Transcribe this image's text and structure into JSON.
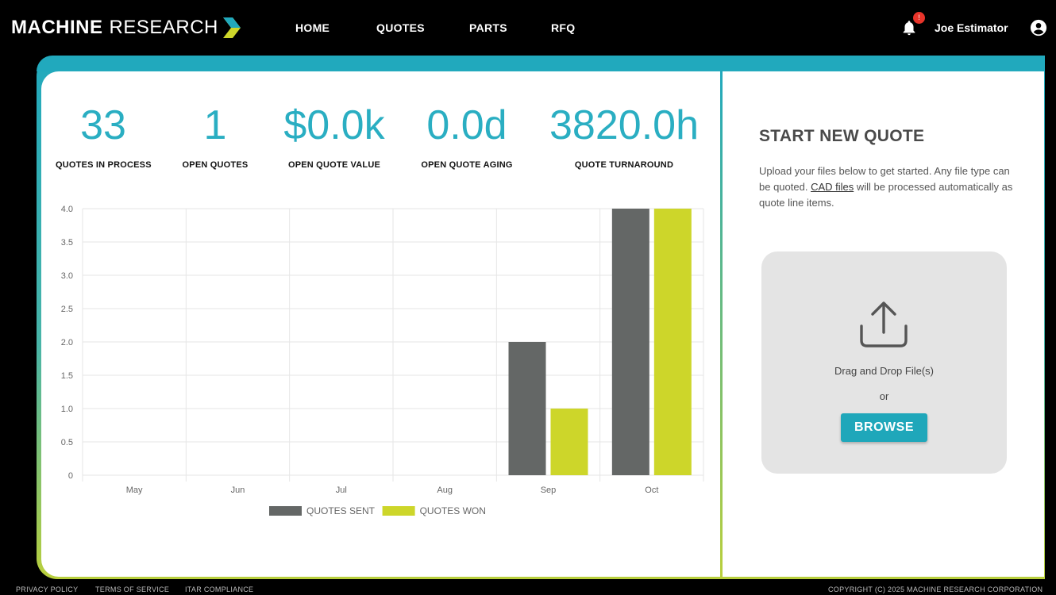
{
  "brand": {
    "bold": "MACHINE",
    "light": "RESEARCH"
  },
  "nav": {
    "home": "HOME",
    "quotes": "QUOTES",
    "parts": "PARTS",
    "rfq": "RFQ"
  },
  "notifications": {
    "count": "!"
  },
  "user": {
    "name": "Joe Estimator"
  },
  "kpis": [
    {
      "value": "33",
      "label": "QUOTES IN PROCESS"
    },
    {
      "value": "1",
      "label": "OPEN QUOTES"
    },
    {
      "value": "$0.0k",
      "label": "OPEN QUOTE VALUE"
    },
    {
      "value": "0.0d",
      "label": "OPEN QUOTE AGING"
    },
    {
      "value": "3820.0h",
      "label": "QUOTE TURNAROUND"
    }
  ],
  "chart_data": {
    "type": "bar",
    "categories": [
      "May",
      "Jun",
      "Jul",
      "Aug",
      "Sep",
      "Oct"
    ],
    "series": [
      {
        "name": "QUOTES SENT",
        "values": [
          0,
          0,
          0,
          0,
          2,
          4
        ],
        "color": "#646766"
      },
      {
        "name": "QUOTES WON",
        "values": [
          0,
          0,
          0,
          0,
          1,
          4
        ],
        "color": "#cdd62a"
      }
    ],
    "ylim": [
      0,
      4
    ],
    "yticks": [
      "4.0",
      "3.5",
      "3.0",
      "2.5",
      "2.0",
      "1.5",
      "1.0",
      "0.5",
      "0"
    ],
    "grid": true,
    "legend": "bottom"
  },
  "new_quote": {
    "title": "START NEW QUOTE",
    "desc_before": "Upload your files below to get started. Any file type can be quoted. ",
    "desc_link": "CAD files",
    "desc_after": " will be processed automatically as quote line items.",
    "drag_text": "Drag and Drop File(s)",
    "or_text": "or",
    "browse_label": "BROWSE"
  },
  "footer": {
    "privacy": "PRIVACY POLICY",
    "terms": "TERMS OF SERVICE",
    "itar": "ITAR COMPLIANCE",
    "copyright": "COPYRIGHT (C) 2025 MACHINE RESEARCH CORPORATION"
  },
  "colors": {
    "accent": "#21a9bd",
    "lime": "#cdd62a",
    "gray": "#646766"
  }
}
